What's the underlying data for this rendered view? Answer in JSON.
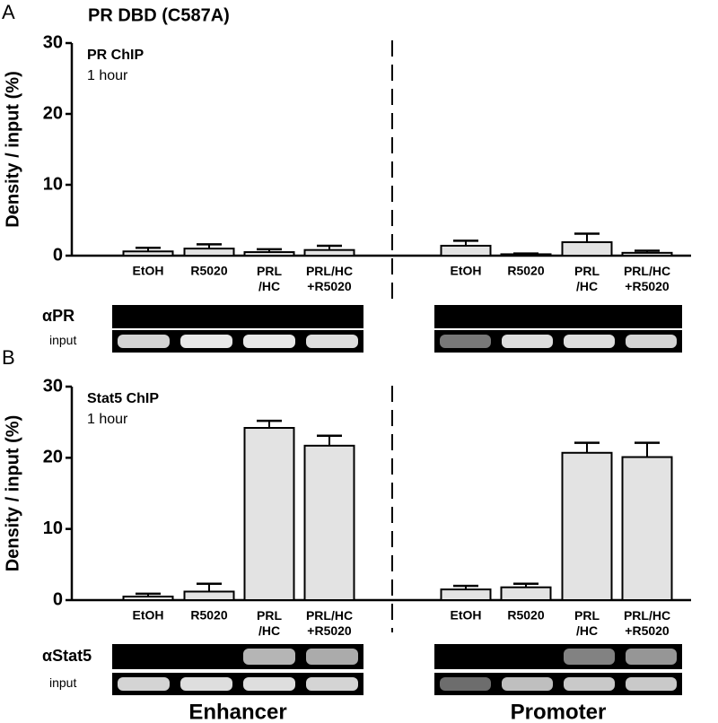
{
  "chart_data": [
    {
      "type": "bar",
      "panel": "A",
      "title": "PR DBD (C587A)",
      "annotations": [
        "PR ChIP",
        "1 hour"
      ],
      "ylabel": "Density / input (%)",
      "ylim": [
        0,
        30
      ],
      "yticks": [
        0,
        10,
        20,
        30
      ],
      "categories": [
        "EtOH",
        "R5020",
        "PRL\n/HC",
        "PRL/HC\n+R5020"
      ],
      "series": [
        {
          "color": "#e3e3e3",
          "values": [
            0.6,
            1.0,
            0.5,
            0.8
          ],
          "errors": [
            0.5,
            0.6,
            0.4,
            0.6
          ]
        },
        {
          "color": "#e3e3e3",
          "values": [
            1.4,
            0.2,
            1.9,
            0.4
          ],
          "errors": [
            0.7,
            0.1,
            1.2,
            0.3
          ]
        }
      ],
      "gel_labels": [
        "αPR",
        "input"
      ]
    },
    {
      "type": "bar",
      "panel": "B",
      "annotations": [
        "Stat5 ChIP",
        "1 hour"
      ],
      "ylabel": "Density / input (%)",
      "ylim": [
        0,
        30
      ],
      "yticks": [
        0,
        10,
        20,
        30
      ],
      "categories": [
        "EtOH",
        "R5020",
        "PRL\n/HC",
        "PRL/HC\n+R5020"
      ],
      "series": [
        {
          "name": "Enhancer",
          "color": "#e3e3e3",
          "values": [
            0.5,
            1.2,
            24.2,
            21.7
          ],
          "errors": [
            0.4,
            1.1,
            1.0,
            1.4
          ]
        },
        {
          "name": "Promoter",
          "color": "#e3e3e3",
          "values": [
            1.5,
            1.8,
            20.7,
            20.1
          ],
          "errors": [
            0.5,
            0.5,
            1.4,
            2.0
          ]
        }
      ],
      "gel_labels": [
        "αStat5",
        "input"
      ]
    }
  ]
}
